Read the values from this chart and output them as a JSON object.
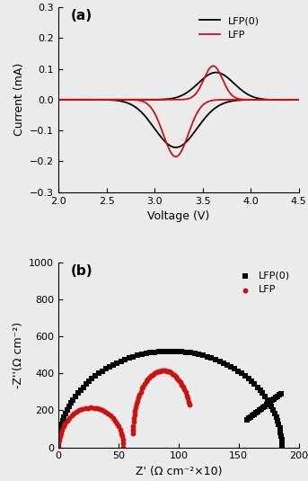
{
  "panel_a": {
    "title": "(a)",
    "xlabel": "Voltage (V)",
    "ylabel": "Current (mA)",
    "xlim": [
      2.0,
      4.5
    ],
    "ylim": [
      -0.3,
      0.3
    ],
    "xticks": [
      2.0,
      2.5,
      3.0,
      3.5,
      4.0,
      4.5
    ],
    "yticks": [
      -0.3,
      -0.2,
      -0.1,
      0.0,
      0.1,
      0.2,
      0.3
    ],
    "legend_labels": [
      "LFP(0)",
      "LFP"
    ],
    "legend_colors": [
      "black",
      "#cc1111"
    ]
  },
  "panel_b": {
    "title": "(b)",
    "xlabel": "Z' (Ω cm⁻²×10)",
    "ylabel": "-Z''(Ω cm⁻²)",
    "xlim": [
      0,
      200
    ],
    "ylim": [
      0,
      1000
    ],
    "xticks": [
      0,
      50,
      100,
      150,
      200
    ],
    "yticks": [
      0,
      200,
      400,
      600,
      800,
      1000
    ],
    "legend_labels": [
      "LFP(0)",
      "LFP"
    ],
    "legend_colors": [
      "black",
      "#cc1111"
    ]
  },
  "fig_bgcolor": "#f0f0f0"
}
